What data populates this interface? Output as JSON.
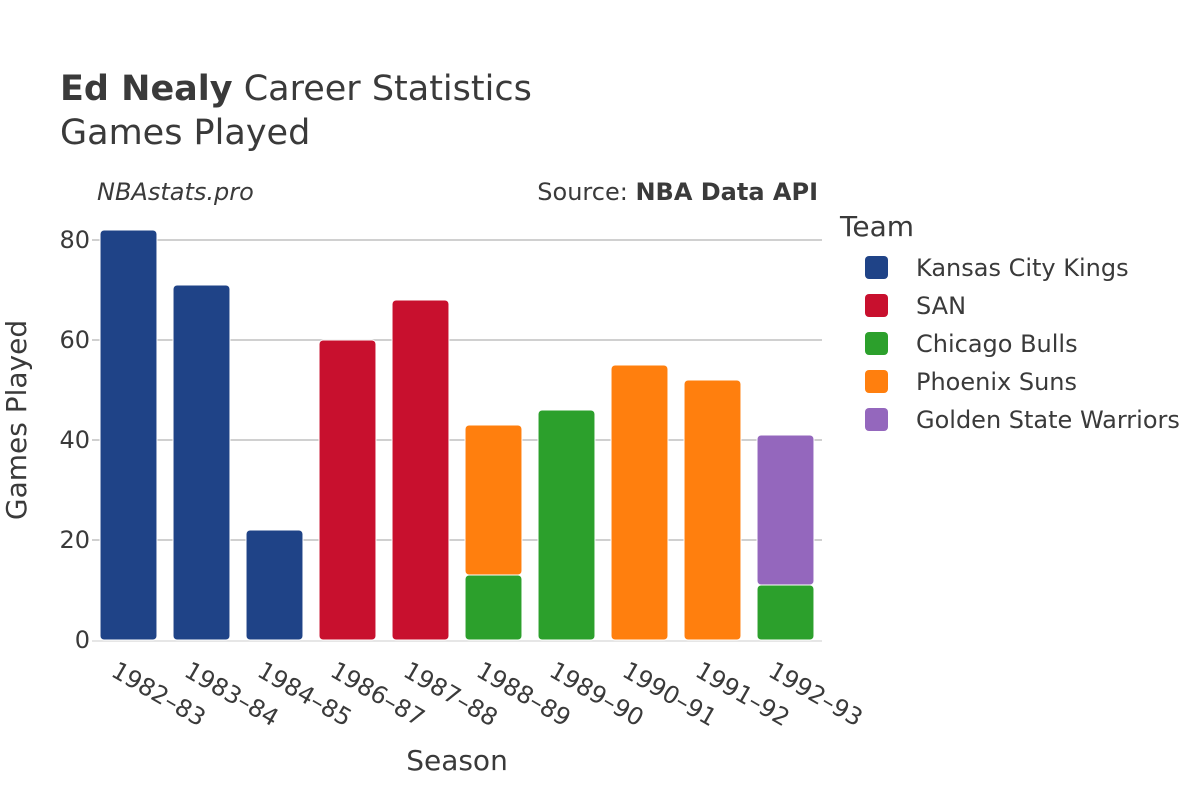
{
  "header": {
    "player_name": "Ed Nealy",
    "title_suffix": " Career Statistics",
    "subtitle": "Games Played"
  },
  "credits": {
    "site": "NBAstats.pro",
    "source_label": "Source: ",
    "source_name": "NBA Data API"
  },
  "chart_data": {
    "type": "bar",
    "stacked": true,
    "title": "Ed Nealy Career Statistics",
    "subtitle": "Games Played",
    "xlabel": "Season",
    "ylabel": "Games Played",
    "ylim": [
      0,
      85
    ],
    "yticks": [
      0,
      20,
      40,
      60,
      80
    ],
    "grid": true,
    "legend_title": "Team",
    "legend_position": "right",
    "categories": [
      "1982–83",
      "1983–84",
      "1984–85",
      "1986–87",
      "1987–88",
      "1988–89",
      "1989–90",
      "1990–91",
      "1991–92",
      "1992–93"
    ],
    "series": [
      {
        "name": "Kansas City Kings",
        "color": "#1f4387",
        "values": [
          82,
          71,
          22,
          0,
          0,
          0,
          0,
          0,
          0,
          0
        ]
      },
      {
        "name": "SAN",
        "color": "#c8102e",
        "values": [
          0,
          0,
          0,
          60,
          68,
          0,
          0,
          0,
          0,
          0
        ]
      },
      {
        "name": "Chicago Bulls",
        "color": "#2ca02c",
        "values": [
          0,
          0,
          0,
          0,
          0,
          13,
          46,
          0,
          0,
          11
        ]
      },
      {
        "name": "Phoenix Suns",
        "color": "#ff7f0e",
        "values": [
          0,
          0,
          0,
          0,
          0,
          30,
          0,
          55,
          52,
          0
        ]
      },
      {
        "name": "Golden State Warriors",
        "color": "#9467bd",
        "values": [
          0,
          0,
          0,
          0,
          0,
          0,
          0,
          0,
          0,
          30
        ]
      }
    ]
  }
}
